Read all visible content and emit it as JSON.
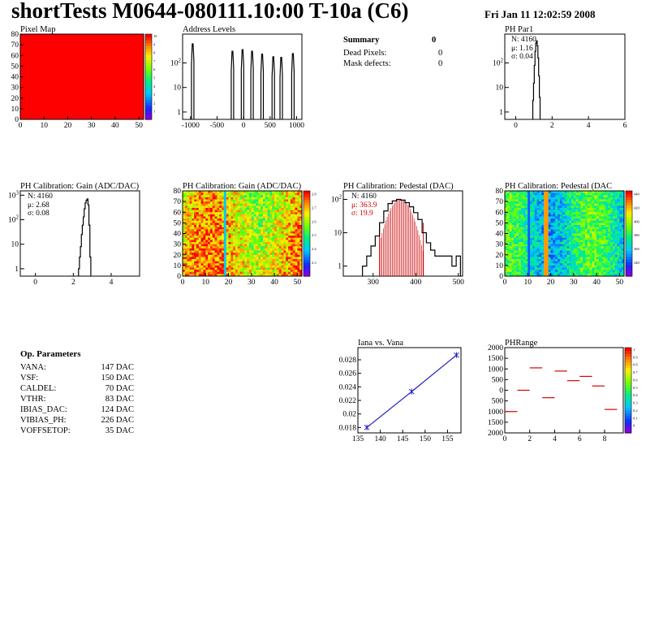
{
  "header": {
    "title": "shortTests M0644-080111.10:00 T-10a (C6)",
    "timestamp": "Fri Jan 11 12:02:59 2008"
  },
  "summary": {
    "title": "Summary",
    "value": "0",
    "rows": [
      {
        "label": "Dead Pixels:",
        "value": "0"
      },
      {
        "label": "Mask defects:",
        "value": "0"
      }
    ]
  },
  "op_params": {
    "title": "Op. Parameters",
    "rows": [
      {
        "name": "VANA:",
        "value": "147 DAC"
      },
      {
        "name": "VSF:",
        "value": "150 DAC"
      },
      {
        "name": "CALDEL:",
        "value": "70 DAC"
      },
      {
        "name": "VTHR:",
        "value": "83 DAC"
      },
      {
        "name": "IBIAS_DAC:",
        "value": "124 DAC"
      },
      {
        "name": "VIBIAS_PH:",
        "value": "226 DAC"
      },
      {
        "name": "VOFFSETOP:",
        "value": "35 DAC"
      }
    ]
  },
  "chart_data": [
    {
      "id": "pixel-map",
      "type": "heatmap",
      "title": "Pixel Map",
      "xlim": [
        0,
        52
      ],
      "ylim": [
        0,
        80
      ],
      "x_ticks": [
        "0",
        "10",
        "20",
        "30",
        "40",
        "50"
      ],
      "y_ticks": [
        "0",
        "10",
        "20",
        "30",
        "40",
        "50",
        "60",
        "70",
        "80"
      ],
      "fill_color": "#ff0000",
      "colorbar": {
        "ticks": [
          "1",
          "2",
          "3",
          "4",
          "5",
          "6",
          "7",
          "8",
          "9",
          "10"
        ]
      }
    },
    {
      "id": "address-levels",
      "type": "bar",
      "title": "Address Levels",
      "yscale": "log",
      "xlim": [
        -1150,
        1100
      ],
      "x_ticks": [
        "-1000",
        "-500",
        "0",
        "500",
        "1000"
      ],
      "y_ticks": [
        "1",
        "10",
        "10^2"
      ],
      "peaks": [
        {
          "x": -960,
          "y": 600
        },
        {
          "x": -210,
          "y": 300
        },
        {
          "x": -20,
          "y": 350
        },
        {
          "x": 160,
          "y": 300
        },
        {
          "x": 350,
          "y": 230
        },
        {
          "x": 560,
          "y": 180
        },
        {
          "x": 710,
          "y": 170
        },
        {
          "x": 930,
          "y": 240
        }
      ]
    },
    {
      "id": "ph-par1",
      "type": "bar",
      "title": "PH Par1",
      "yscale": "log",
      "xlim": [
        -0.6,
        6
      ],
      "x_ticks": [
        "0",
        "2",
        "4",
        "6"
      ],
      "y_ticks": [
        "1",
        "10",
        "10^2"
      ],
      "stats": {
        "N": "4160",
        "mu": "1.16",
        "sigma": "0.04"
      },
      "x": [
        0.96,
        1.0,
        1.04,
        1.08,
        1.12,
        1.16,
        1.2,
        1.24,
        1.28,
        1.32
      ],
      "y": [
        3,
        15,
        80,
        300,
        650,
        800,
        500,
        160,
        30,
        4
      ]
    },
    {
      "id": "gain-hist",
      "type": "bar",
      "title": "PH Calibration: Gain (ADC/DAC)",
      "yscale": "log",
      "xlim": [
        -0.8,
        5.5
      ],
      "x_ticks": [
        "0",
        "2",
        "4"
      ],
      "y_ticks": [
        "1",
        "10",
        "10^2",
        "10^3"
      ],
      "stats": {
        "N": "4160",
        "mu": "2.68",
        "sigma": "0.08"
      },
      "x": [
        2.3,
        2.35,
        2.4,
        2.45,
        2.5,
        2.55,
        2.6,
        2.65,
        2.7,
        2.75,
        2.8,
        2.85,
        2.9
      ],
      "y": [
        1,
        3,
        8,
        25,
        60,
        130,
        280,
        480,
        620,
        700,
        400,
        60,
        3
      ]
    },
    {
      "id": "gain-map",
      "type": "heatmap",
      "title": "PH Calibration: Gain (ADC/DAC)",
      "xlim": [
        0,
        52
      ],
      "ylim": [
        0,
        80
      ],
      "x_ticks": [
        "0",
        "10",
        "20",
        "30",
        "40",
        "50"
      ],
      "y_ticks": [
        "0",
        "10",
        "20",
        "30",
        "40",
        "50",
        "60",
        "70",
        "80"
      ],
      "colorbar": {
        "ticks": [
          "2.3",
          "2.4",
          "2.5",
          "2.6",
          "2.7",
          "2.8"
        ]
      }
    },
    {
      "id": "pedestal-hist",
      "type": "bar",
      "title": "PH Calibration: Pedestal (DAC)",
      "yscale": "log",
      "xlim": [
        230,
        510
      ],
      "x_ticks": [
        "300",
        "400",
        "500"
      ],
      "y_ticks": [
        "1",
        "10",
        "10^2"
      ],
      "stats": {
        "N": "4160",
        "mu": "363.9",
        "sigma": "19.9"
      },
      "fit_range": [
        315,
        418
      ],
      "x": [
        280,
        290,
        300,
        310,
        320,
        330,
        340,
        350,
        360,
        370,
        380,
        390,
        400,
        410,
        420,
        430,
        440,
        450,
        460,
        470,
        480,
        490,
        500
      ],
      "y": [
        1,
        2,
        4,
        8,
        20,
        45,
        75,
        90,
        100,
        95,
        80,
        60,
        40,
        25,
        10,
        5,
        3,
        2,
        2,
        2,
        2,
        1,
        2
      ]
    },
    {
      "id": "pedestal-map",
      "type": "heatmap",
      "title": "PH Calibration: Pedestal (DAC",
      "xlim": [
        0,
        52
      ],
      "ylim": [
        0,
        80
      ],
      "x_ticks": [
        "0",
        "10",
        "20",
        "30",
        "40",
        "50"
      ],
      "y_ticks": [
        "0",
        "10",
        "20",
        "30",
        "40",
        "50",
        "60",
        "70",
        "80"
      ],
      "colorbar": {
        "ticks": [
          "340",
          "360",
          "380",
          "400",
          "420",
          "440"
        ]
      }
    },
    {
      "id": "iana-vana",
      "type": "line",
      "title": "Iana vs. Vana",
      "xlim": [
        135,
        158
      ],
      "ylim": [
        0.0172,
        0.0298
      ],
      "x_ticks": [
        "135",
        "140",
        "145",
        "150",
        "155"
      ],
      "y_ticks": [
        "0.018",
        "0.02",
        "0.022",
        "0.024",
        "0.026",
        "0.028"
      ],
      "x": [
        137,
        147,
        157
      ],
      "y": [
        0.018,
        0.0233,
        0.0287
      ]
    },
    {
      "id": "ph-range",
      "type": "scatter",
      "title": "PHRange",
      "xlim": [
        0,
        9.5
      ],
      "ylim": [
        -2000,
        2000
      ],
      "x_ticks": [
        "0",
        "2",
        "4",
        "6",
        "8"
      ],
      "y_ticks": [
        "2000",
        "1500",
        "1000",
        "500",
        "0",
        "500",
        "1000",
        "1500",
        "2000"
      ],
      "colorbar": {
        "ticks": [
          "0",
          "0.1",
          "0.2",
          "0.3",
          "0.4",
          "0.5",
          "0.6",
          "0.7",
          "0.8",
          "0.9",
          "1"
        ]
      },
      "x": [
        0.5,
        1.5,
        2.5,
        3.5,
        4.5,
        5.5,
        6.5,
        7.5,
        8.5
      ],
      "y": [
        -1000,
        0,
        1050,
        -350,
        900,
        450,
        650,
        200,
        -900
      ]
    }
  ]
}
